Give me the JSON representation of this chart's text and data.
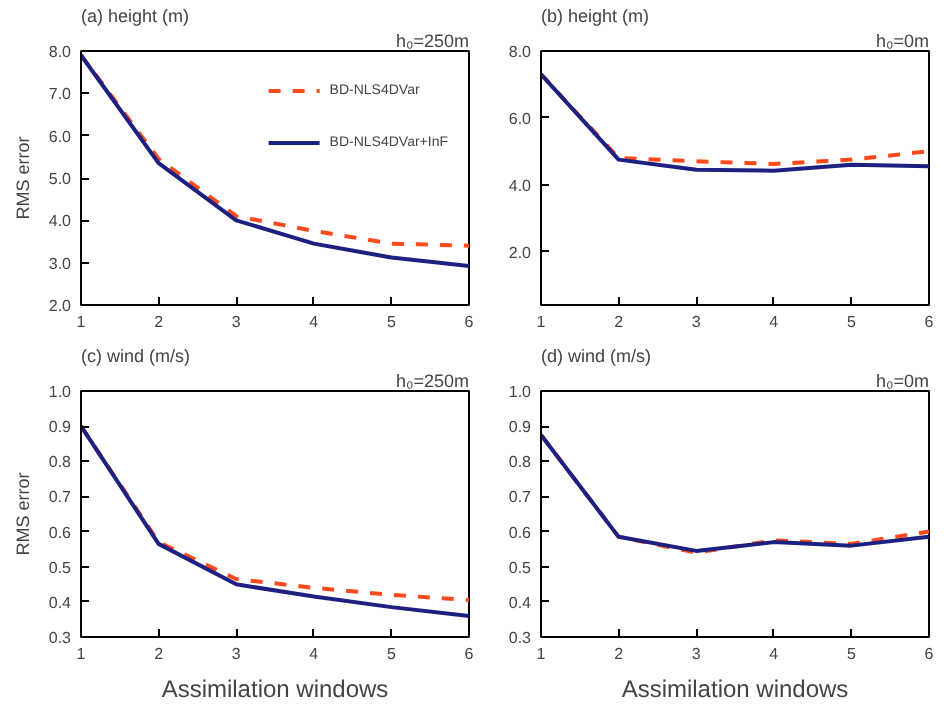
{
  "chart_data": [
    {
      "type": "line",
      "title": "(a) height (m)",
      "ylabel": "RMS error",
      "annotations": [
        "h₀=250m"
      ],
      "x": [
        1,
        2,
        3,
        4,
        5,
        6
      ],
      "xlim": [
        1,
        6
      ],
      "xticks": [
        1,
        2,
        3,
        4,
        5,
        6
      ],
      "ylim": [
        2.0,
        8.0
      ],
      "yticks": [
        {
          "value": 2,
          "label": "2.0"
        },
        {
          "value": 3,
          "label": "3.0"
        },
        {
          "value": 4,
          "label": "4.0"
        },
        {
          "value": 5,
          "label": "5.0"
        },
        {
          "value": 6,
          "label": "6.0"
        },
        {
          "value": 7,
          "label": "7.0"
        },
        {
          "value": 8,
          "label": "8.0"
        }
      ],
      "legend": "top right",
      "grid": false,
      "series": [
        {
          "name": "BD-NLS4DVar",
          "color": "#ff4a1c",
          "line_style": "dashed",
          "values": [
            7.9,
            5.45,
            4.1,
            3.75,
            3.45,
            3.4
          ]
        },
        {
          "name": "BD-NLS4DVar+InF",
          "color": "#1c2080",
          "line_style": "solid",
          "values": [
            7.9,
            5.35,
            4.0,
            3.45,
            3.12,
            2.92
          ]
        }
      ]
    },
    {
      "type": "line",
      "title": "(b) height (m)",
      "annotations": [
        "h₀=0m"
      ],
      "x": [
        1,
        2,
        3,
        4,
        5,
        6
      ],
      "xlim": [
        1,
        6
      ],
      "xticks": [
        1,
        2,
        3,
        4,
        5,
        6
      ],
      "ylim": [
        0.4,
        8.0
      ],
      "yticks": [
        {
          "value": 2,
          "label": "2.0"
        },
        {
          "value": 4,
          "label": "4.0"
        },
        {
          "value": 6,
          "label": "6.0"
        },
        {
          "value": 8,
          "label": "8.0"
        }
      ],
      "grid": false,
      "series": [
        {
          "color": "#ff4a1c",
          "line_style": "dashed",
          "values": [
            7.3,
            4.8,
            4.7,
            4.62,
            4.75,
            5.0
          ]
        },
        {
          "color": "#1c2080",
          "line_style": "solid",
          "values": [
            7.3,
            4.75,
            4.45,
            4.42,
            4.6,
            4.55
          ]
        }
      ]
    },
    {
      "type": "line",
      "title": "(c) wind (m/s)",
      "ylabel": "RMS error",
      "xlabel": "Assimilation windows",
      "annotations": [
        "h₀=250m"
      ],
      "x": [
        1,
        2,
        3,
        4,
        5,
        6
      ],
      "xlim": [
        1,
        6
      ],
      "xticks": [
        1,
        2,
        3,
        4,
        5,
        6
      ],
      "ylim": [
        0.3,
        1.0
      ],
      "yticks": [
        0.3,
        0.4,
        0.5,
        0.6,
        0.7,
        0.8,
        0.9,
        {
          "value": 1.0,
          "label": "1.0"
        }
      ],
      "grid": false,
      "series": [
        {
          "color": "#ff4a1c",
          "line_style": "dashed",
          "values": [
            0.9,
            0.57,
            0.465,
            0.44,
            0.42,
            0.405
          ]
        },
        {
          "color": "#1c2080",
          "line_style": "solid",
          "values": [
            0.9,
            0.565,
            0.45,
            0.415,
            0.385,
            0.36
          ]
        }
      ]
    },
    {
      "type": "line",
      "title": "(d) wind (m/s)",
      "xlabel": "Assimilation windows",
      "annotations": [
        "h₀=0m"
      ],
      "x": [
        1,
        2,
        3,
        4,
        5,
        6
      ],
      "xlim": [
        1,
        6
      ],
      "xticks": [
        1,
        2,
        3,
        4,
        5,
        6
      ],
      "ylim": [
        0.3,
        1.0
      ],
      "yticks": [
        0.3,
        0.4,
        0.5,
        0.6,
        0.7,
        0.8,
        0.9,
        {
          "value": 1.0,
          "label": "1.0"
        }
      ],
      "grid": false,
      "series": [
        {
          "color": "#ff4a1c",
          "line_style": "dashed",
          "values": [
            0.875,
            0.585,
            0.54,
            0.575,
            0.565,
            0.6
          ]
        },
        {
          "color": "#1c2080",
          "line_style": "solid",
          "values": [
            0.875,
            0.585,
            0.545,
            0.57,
            0.56,
            0.585
          ]
        }
      ]
    }
  ]
}
